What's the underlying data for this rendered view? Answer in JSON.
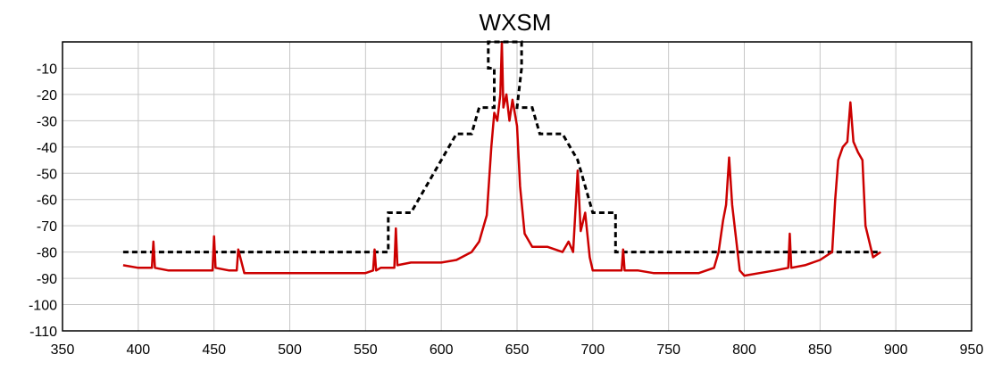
{
  "chart_data": {
    "type": "line",
    "title": "WXSM",
    "xlabel": "",
    "ylabel": "",
    "xlim": [
      350,
      950
    ],
    "ylim": [
      -110,
      0
    ],
    "x_ticks": [
      350,
      400,
      450,
      500,
      550,
      600,
      650,
      700,
      750,
      800,
      850,
      900,
      950
    ],
    "y_ticks": [
      -10,
      -20,
      -30,
      -40,
      -50,
      -60,
      -70,
      -80,
      -90,
      -100,
      -110
    ],
    "grid": true,
    "series": [
      {
        "style": "dashed",
        "color": "#000000",
        "x": [
          390,
          565,
          565,
          580,
          600,
          610,
          620,
          625,
          635,
          635,
          631,
          631,
          653,
          653,
          650,
          660,
          665,
          680,
          690,
          700,
          715,
          715,
          890
        ],
        "y": [
          -80,
          -80,
          -65,
          -65,
          -45,
          -35,
          -35,
          -25,
          -25,
          -10,
          -10,
          0,
          0,
          -10,
          -25,
          -25,
          -35,
          -35,
          -45,
          -65,
          -65,
          -80,
          -80
        ]
      },
      {
        "style": "solid",
        "color": "#cc0000",
        "x": [
          390,
          400,
          409,
          410,
          411,
          420,
          430,
          440,
          449,
          450,
          451,
          460,
          465,
          466,
          470,
          480,
          500,
          520,
          540,
          550,
          555,
          556,
          557,
          560,
          569,
          570,
          571,
          580,
          600,
          610,
          620,
          625,
          630,
          633,
          635,
          637,
          639,
          640,
          641,
          643,
          645,
          647,
          650,
          652,
          655,
          660,
          670,
          680,
          684,
          687,
          690,
          692,
          695,
          698,
          700,
          710,
          719,
          720,
          721,
          730,
          740,
          750,
          760,
          770,
          780,
          783,
          786,
          788,
          790,
          792,
          794,
          797,
          800,
          810,
          820,
          829,
          830,
          831,
          840,
          850,
          858,
          860,
          862,
          865,
          868,
          870,
          872,
          875,
          878,
          880,
          885,
          890
        ],
        "y": [
          -85,
          -86,
          -86,
          -76,
          -86,
          -87,
          -87,
          -87,
          -87,
          -74,
          -86,
          -87,
          -87,
          -79,
          -88,
          -88,
          -88,
          -88,
          -88,
          -88,
          -87,
          -79,
          -87,
          -86,
          -86,
          -71,
          -85,
          -84,
          -84,
          -83,
          -80,
          -76,
          -66,
          -40,
          -27,
          -30,
          -20,
          0,
          -25,
          -20,
          -30,
          -22,
          -32,
          -55,
          -73,
          -78,
          -78,
          -80,
          -76,
          -80,
          -49,
          -72,
          -65,
          -82,
          -87,
          -87,
          -87,
          -79,
          -87,
          -87,
          -88,
          -88,
          -88,
          -88,
          -86,
          -80,
          -68,
          -62,
          -44,
          -62,
          -72,
          -87,
          -89,
          -88,
          -87,
          -86,
          -73,
          -86,
          -85,
          -83,
          -80,
          -60,
          -45,
          -40,
          -38,
          -23,
          -38,
          -42,
          -45,
          -70,
          -82,
          -80
        ]
      }
    ]
  }
}
